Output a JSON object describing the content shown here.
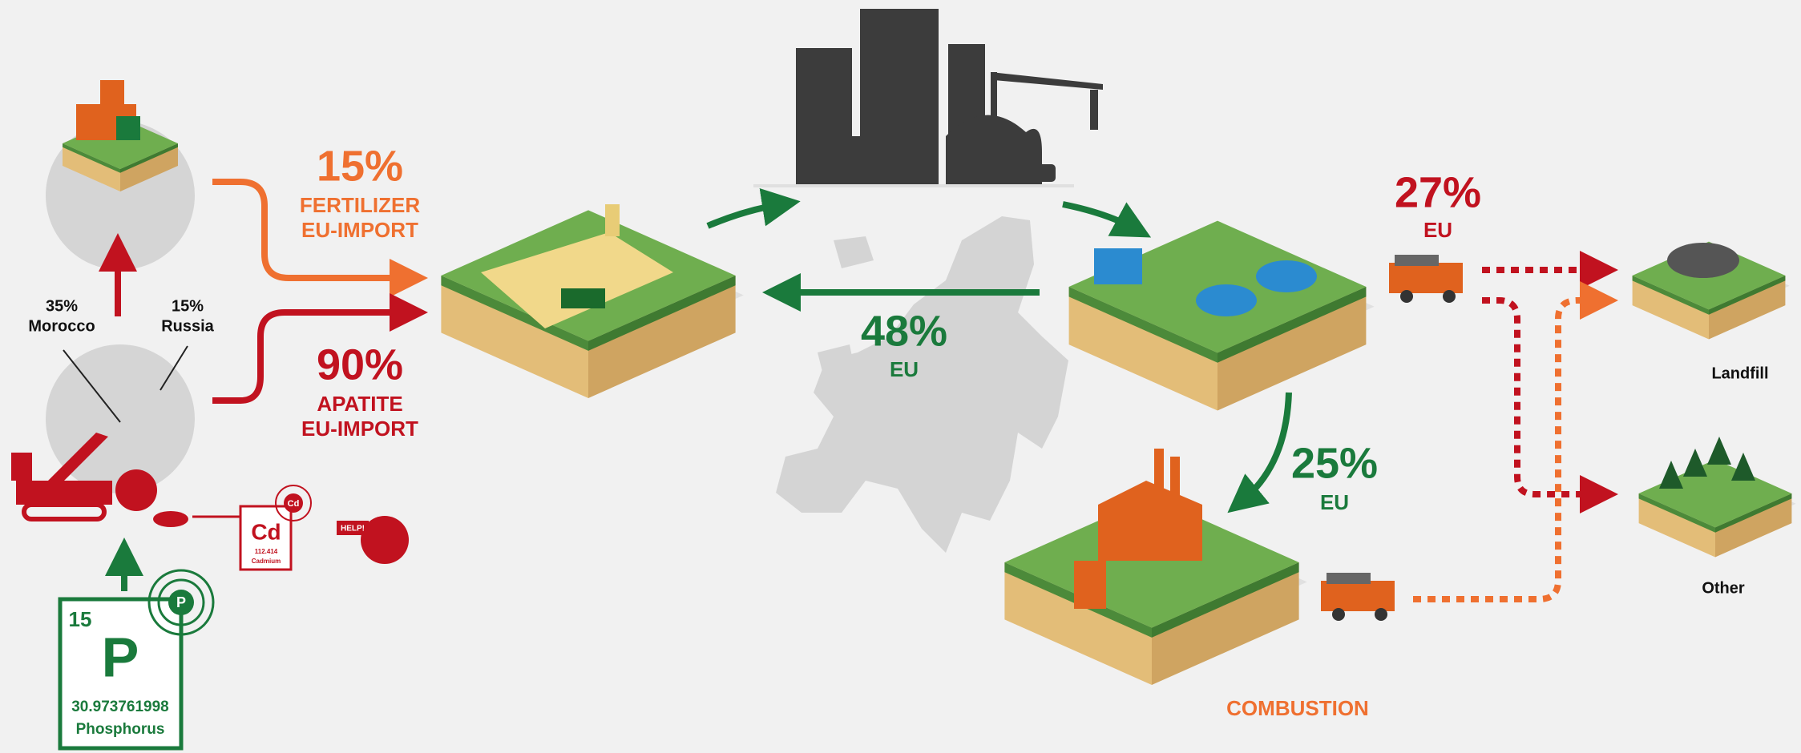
{
  "fertilizer_import": {
    "percent": "15%",
    "label_line1": "FERTILIZER",
    "label_line2": "EU-IMPORT"
  },
  "apatite_import": {
    "percent": "90%",
    "label_line1": "APATITE",
    "label_line2": "EU-IMPORT"
  },
  "sources": [
    {
      "percent": "35%",
      "country": "Morocco"
    },
    {
      "percent": "15%",
      "country": "Russia"
    }
  ],
  "eu_return": {
    "percent": "48%",
    "label": "EU"
  },
  "landfill_flow": {
    "percent": "27%",
    "label": "EU"
  },
  "combustion_flow": {
    "percent": "25%",
    "label": "EU"
  },
  "destinations": [
    "Landfill",
    "Other"
  ],
  "combustion_label": "COMBUSTION",
  "cadmium_card": {
    "orbit_symbol": "Cd",
    "symbol": "Cd",
    "mass": "112.414",
    "name": "Cadmium"
  },
  "help_sign": "HELP!",
  "phosphorus_card": {
    "number": "15",
    "orbit_symbol": "P",
    "symbol": "P",
    "mass": "30.973761998",
    "name": "Phosphorus"
  }
}
